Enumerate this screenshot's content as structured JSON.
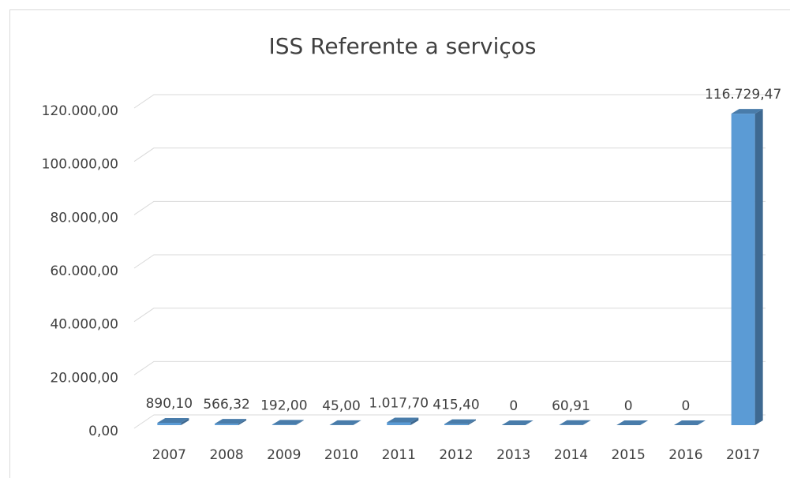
{
  "chart_data": {
    "type": "bar3d",
    "title": "ISS Referente a serviços",
    "categories": [
      "2007",
      "2008",
      "2009",
      "2010",
      "2011",
      "2012",
      "2013",
      "2014",
      "2015",
      "2016",
      "2017"
    ],
    "values": [
      890.1,
      566.32,
      192.0,
      45.0,
      1017.7,
      415.4,
      0,
      60.91,
      0,
      0,
      116729.47
    ],
    "value_labels": [
      "890,10",
      "566,32",
      "192,00",
      "45,00",
      "1.017,70",
      "415,40",
      "0",
      "60,91",
      "0",
      "0",
      "116.729,47"
    ],
    "color": "#5b9bd5",
    "ylim": [
      0,
      120000
    ],
    "yticks": [
      {
        "value": 0,
        "label": "0,00"
      },
      {
        "value": 20000,
        "label": "20.000,00"
      },
      {
        "value": 40000,
        "label": "40.000,00"
      },
      {
        "value": 60000,
        "label": "60.000,00"
      },
      {
        "value": 80000,
        "label": "80.000,00"
      },
      {
        "value": 100000,
        "label": "100.000,00"
      },
      {
        "value": 120000,
        "label": "120.000,00"
      }
    ],
    "grid": true
  }
}
